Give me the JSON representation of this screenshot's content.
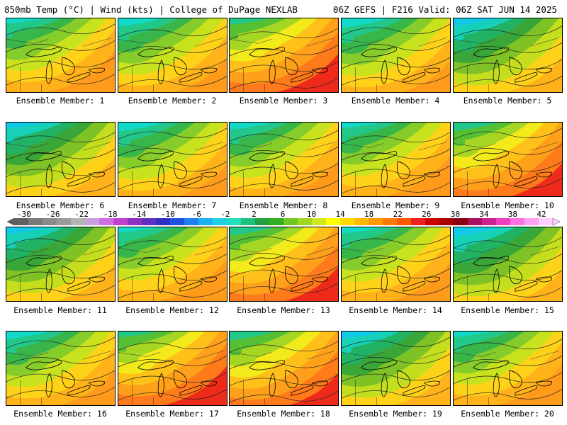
{
  "header": {
    "left": "850mb Temp (°C) | Wind (kts) | College of DuPage NEXLAB",
    "right": "06Z GEFS | F216 Valid: 06Z SAT JUN 14 2025"
  },
  "colorbar": {
    "labels": [
      "-30",
      "-26",
      "-22",
      "-18",
      "-14",
      "-10",
      "-6",
      "-2",
      "2",
      "6",
      "10",
      "14",
      "18",
      "22",
      "26",
      "30",
      "34",
      "38",
      "42"
    ],
    "colors": [
      "#606060",
      "#7a7a7a",
      "#8a8a8a",
      "#9a9a9a",
      "#b4b4b4",
      "#c8a0e0",
      "#d070e0",
      "#c040d0",
      "#9030c0",
      "#6030c0",
      "#3030c0",
      "#2050e0",
      "#2080f0",
      "#20b0f0",
      "#20d0e0",
      "#20e0c0",
      "#20c080",
      "#20a040",
      "#30b020",
      "#70c820",
      "#a0d820",
      "#d0e820",
      "#ffff00",
      "#ffd800",
      "#ffb800",
      "#ff9800",
      "#ff7800",
      "#ff5800",
      "#ee2020",
      "#cc0000",
      "#aa0000",
      "#880010",
      "#aa1060",
      "#cc2090",
      "#ee40c0",
      "#ff70e0",
      "#ffa0f0",
      "#ffd0ff"
    ]
  },
  "members": [
    {
      "label": "Ensemble Member: 1",
      "scheme": "warm"
    },
    {
      "label": "Ensemble Member: 2",
      "scheme": "warm"
    },
    {
      "label": "Ensemble Member: 3",
      "scheme": "hot"
    },
    {
      "label": "Ensemble Member: 4",
      "scheme": "warm"
    },
    {
      "label": "Ensemble Member: 5",
      "scheme": "cool"
    },
    {
      "label": "Ensemble Member: 6",
      "scheme": "cool"
    },
    {
      "label": "Ensemble Member: 7",
      "scheme": "warm"
    },
    {
      "label": "Ensemble Member: 8",
      "scheme": "warm"
    },
    {
      "label": "Ensemble Member: 9",
      "scheme": "warm"
    },
    {
      "label": "Ensemble Member: 10",
      "scheme": "hot"
    },
    {
      "label": "Ensemble Member: 11",
      "scheme": "cool"
    },
    {
      "label": "Ensemble Member: 12",
      "scheme": "warm"
    },
    {
      "label": "Ensemble Member: 13",
      "scheme": "hot"
    },
    {
      "label": "Ensemble Member: 14",
      "scheme": "warm"
    },
    {
      "label": "Ensemble Member: 15",
      "scheme": "cool"
    },
    {
      "label": "Ensemble Member: 16",
      "scheme": "warm"
    },
    {
      "label": "Ensemble Member: 17",
      "scheme": "hot"
    },
    {
      "label": "Ensemble Member: 18",
      "scheme": "hot"
    },
    {
      "label": "Ensemble Member: 19",
      "scheme": "cool"
    },
    {
      "label": "Ensemble Member: 20",
      "scheme": "warm"
    }
  ]
}
